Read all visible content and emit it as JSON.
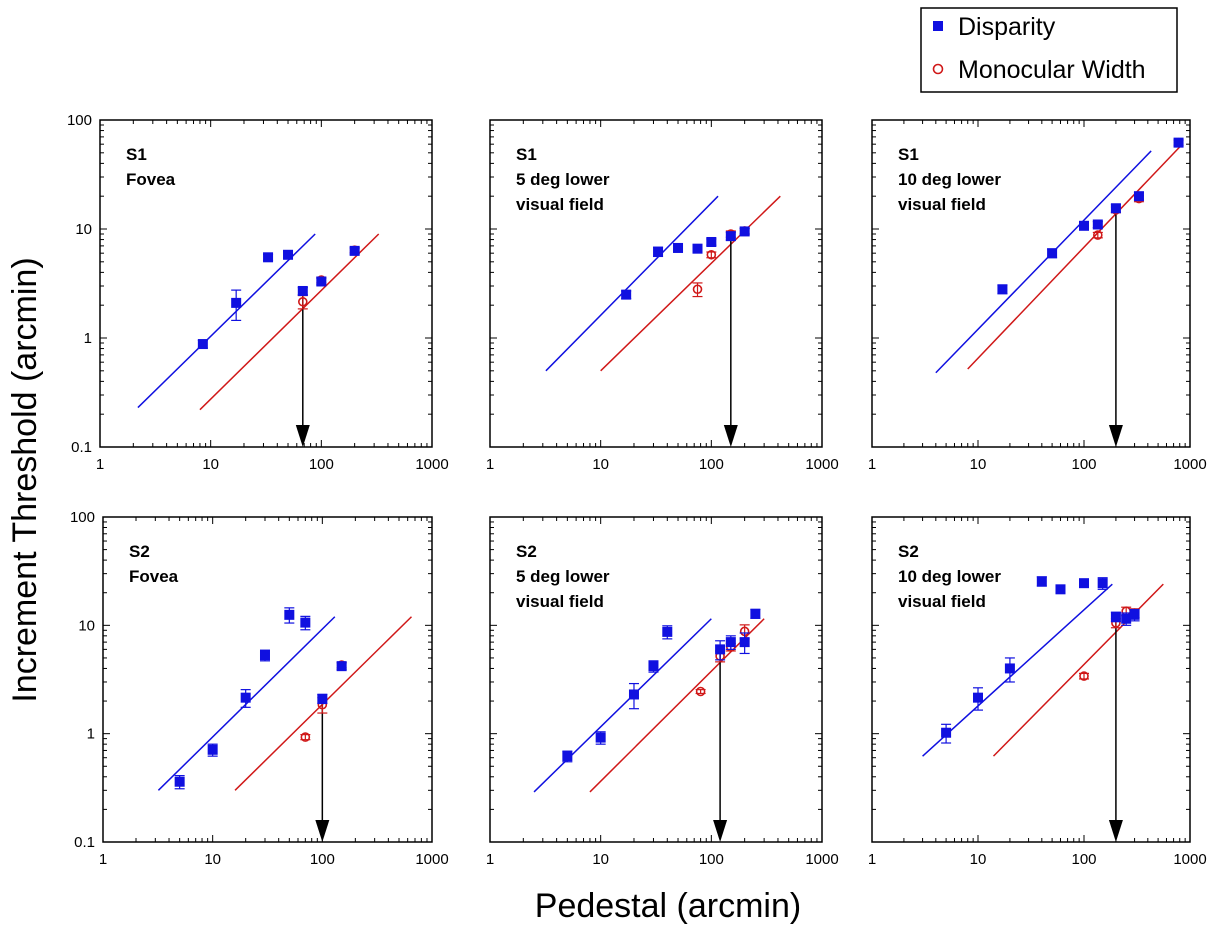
{
  "figure": {
    "ylabel": "Increment Threshold (arcmin)",
    "xlabel": "Pedestal (arcmin)"
  },
  "legend": {
    "placement": "top-right",
    "items": [
      {
        "label": "Disparity",
        "marker": "filled-square",
        "color": "#1010e0"
      },
      {
        "label": "Monocular Width",
        "marker": "open-circle",
        "color": "#d01818"
      }
    ]
  },
  "colors": {
    "disparity": "#1010e0",
    "monocular": "#d01818",
    "arrow": "#000000"
  },
  "chart_data": [
    {
      "type": "scatter",
      "subject": "S1",
      "location": [
        "Fovea"
      ],
      "x_scale": "log",
      "y_scale": "log",
      "xlim": [
        1,
        1000
      ],
      "ylim": [
        0.1,
        100
      ],
      "x_ticks": [
        "1",
        "10",
        "100",
        "1000"
      ],
      "y_ticks": [
        "0.1",
        "1",
        "10",
        "100"
      ],
      "disparity_points": [
        [
          8.5,
          0.88,
          0.07
        ],
        [
          17,
          2.1,
          0.65
        ],
        [
          33,
          5.5,
          0.35
        ],
        [
          50,
          5.8,
          0.4
        ],
        [
          68,
          2.7,
          0.2
        ],
        [
          100,
          3.3,
          0.22
        ],
        [
          200,
          6.3,
          0.4
        ]
      ],
      "monocular_points": [
        [
          68,
          2.15,
          0.3
        ],
        [
          100,
          3.4,
          0.2
        ],
        [
          200,
          6.4,
          0.3
        ]
      ],
      "disparity_fit": [
        [
          2.2,
          0.23
        ],
        [
          88,
          9
        ]
      ],
      "monocular_fit": [
        [
          8,
          0.22
        ],
        [
          330,
          9
        ]
      ],
      "arrow_x": 68
    },
    {
      "type": "scatter",
      "subject": "S1",
      "location": [
        "5 deg lower",
        "visual field"
      ],
      "x_scale": "log",
      "y_scale": "log",
      "xlim": [
        1,
        1000
      ],
      "ylim": [
        0.1,
        100
      ],
      "x_ticks": [
        "1",
        "10",
        "100",
        "1000"
      ],
      "y_ticks": [
        "0.1",
        "1",
        "10",
        "100"
      ],
      "disparity_points": [
        [
          17,
          2.5,
          0.2
        ],
        [
          33,
          6.2,
          0.6
        ],
        [
          50,
          6.7,
          0.4
        ],
        [
          75,
          6.6,
          0.4
        ],
        [
          100,
          7.6,
          0.5
        ],
        [
          150,
          8.6,
          0.7
        ],
        [
          200,
          9.5,
          0.6
        ]
      ],
      "monocular_points": [
        [
          75,
          2.8,
          0.4
        ],
        [
          100,
          5.8,
          0.35
        ],
        [
          150,
          9.0,
          0.6
        ],
        [
          200,
          9.6,
          0.5
        ]
      ],
      "disparity_fit": [
        [
          3.2,
          0.5
        ],
        [
          115,
          20
        ]
      ],
      "monocular_fit": [
        [
          10,
          0.5
        ],
        [
          420,
          20
        ]
      ],
      "arrow_x": 150
    },
    {
      "type": "scatter",
      "subject": "S1",
      "location": [
        "10 deg lower",
        "visual field"
      ],
      "x_scale": "log",
      "y_scale": "log",
      "xlim": [
        1,
        1000
      ],
      "ylim": [
        0.1,
        100
      ],
      "x_ticks": [
        "1",
        "10",
        "100",
        "1000"
      ],
      "y_ticks": [
        "0.1",
        "1",
        "10",
        "100"
      ],
      "disparity_points": [
        [
          17,
          2.8,
          0.25
        ],
        [
          50,
          6.0,
          0.55
        ],
        [
          100,
          10.7,
          0.7
        ],
        [
          135,
          11.0,
          0.7
        ],
        [
          200,
          15.5,
          1.2
        ],
        [
          330,
          20.0,
          1.5
        ],
        [
          780,
          62,
          4
        ]
      ],
      "monocular_points": [
        [
          135,
          8.8,
          0.5
        ],
        [
          200,
          15.0,
          0.9
        ],
        [
          330,
          19.0,
          1.2
        ],
        [
          780,
          62,
          3
        ]
      ],
      "disparity_fit": [
        [
          4,
          0.48
        ],
        [
          430,
          52
        ]
      ],
      "monocular_fit": [
        [
          8,
          0.52
        ],
        [
          820,
          58
        ]
      ],
      "arrow_x": 200
    },
    {
      "type": "scatter",
      "subject": "S2",
      "location": [
        "Fovea"
      ],
      "x_scale": "log",
      "y_scale": "log",
      "xlim": [
        1,
        1000
      ],
      "ylim": [
        0.1,
        100
      ],
      "x_ticks": [
        "1",
        "10",
        "100",
        "1000"
      ],
      "y_ticks": [
        "0.1",
        "1",
        "10",
        "100"
      ],
      "disparity_points": [
        [
          5,
          0.36,
          0.05
        ],
        [
          10,
          0.71,
          0.09
        ],
        [
          20,
          2.15,
          0.4
        ],
        [
          30,
          5.3,
          0.6
        ],
        [
          50,
          12.5,
          2.0
        ],
        [
          70,
          10.6,
          1.5
        ],
        [
          100,
          2.1,
          0.2
        ],
        [
          150,
          4.2,
          0.3
        ]
      ],
      "monocular_points": [
        [
          70,
          0.93,
          0.05
        ],
        [
          100,
          1.85,
          0.3
        ],
        [
          150,
          4.3,
          0.25
        ]
      ],
      "disparity_fit": [
        [
          3.2,
          0.3
        ],
        [
          130,
          12
        ]
      ],
      "monocular_fit": [
        [
          16,
          0.3
        ],
        [
          650,
          12
        ]
      ],
      "arrow_x": 100
    },
    {
      "type": "scatter",
      "subject": "S2",
      "location": [
        "5 deg lower",
        "visual field"
      ],
      "x_scale": "log",
      "y_scale": "log",
      "xlim": [
        1,
        1000
      ],
      "ylim": [
        0.1,
        100
      ],
      "x_ticks": [
        "1",
        "10",
        "100",
        "1000"
      ],
      "y_ticks": [
        "0.1",
        "1",
        "10",
        "100"
      ],
      "disparity_points": [
        [
          5,
          0.62,
          0.07
        ],
        [
          10,
          0.92,
          0.12
        ],
        [
          20,
          2.3,
          0.6
        ],
        [
          30,
          4.2,
          0.5
        ],
        [
          40,
          8.7,
          1.2
        ],
        [
          120,
          6.0,
          1.2
        ],
        [
          150,
          7.0,
          1.0
        ],
        [
          200,
          7.0,
          1.5
        ],
        [
          250,
          12.8,
          1.2
        ]
      ],
      "monocular_points": [
        [
          80,
          2.45,
          0.1
        ],
        [
          120,
          5.2,
          0.6
        ],
        [
          150,
          6.3,
          0.5
        ],
        [
          200,
          8.8,
          1.3
        ]
      ],
      "disparity_fit": [
        [
          2.5,
          0.29
        ],
        [
          100,
          11.5
        ]
      ],
      "monocular_fit": [
        [
          8,
          0.29
        ],
        [
          300,
          11.5
        ]
      ],
      "arrow_x": 120
    },
    {
      "type": "scatter",
      "subject": "S2",
      "location": [
        "10 deg lower",
        "visual field"
      ],
      "x_scale": "log",
      "y_scale": "log",
      "xlim": [
        1,
        1000
      ],
      "ylim": [
        0.1,
        100
      ],
      "x_ticks": [
        "1",
        "10",
        "100",
        "1000"
      ],
      "y_ticks": [
        "0.1",
        "1",
        "10",
        "100"
      ],
      "disparity_points": [
        [
          5,
          1.02,
          0.2
        ],
        [
          10,
          2.15,
          0.5
        ],
        [
          20,
          4.0,
          1.0
        ],
        [
          40,
          25.5,
          2.5
        ],
        [
          60,
          21.5,
          1.5
        ],
        [
          100,
          24.5,
          2.0
        ],
        [
          150,
          24.5,
          3.0
        ],
        [
          200,
          12.0,
          1.2
        ],
        [
          250,
          11.5,
          1.5
        ],
        [
          300,
          12.5,
          1.5
        ]
      ],
      "monocular_points": [
        [
          100,
          3.4,
          0.2
        ],
        [
          200,
          10.5,
          1.0
        ],
        [
          250,
          13.5,
          1.2
        ],
        [
          300,
          13.0,
          1.2
        ]
      ],
      "disparity_fit": [
        [
          3,
          0.62
        ],
        [
          185,
          24
        ]
      ],
      "monocular_fit": [
        [
          14,
          0.62
        ],
        [
          560,
          24
        ]
      ],
      "arrow_x": 200
    }
  ]
}
